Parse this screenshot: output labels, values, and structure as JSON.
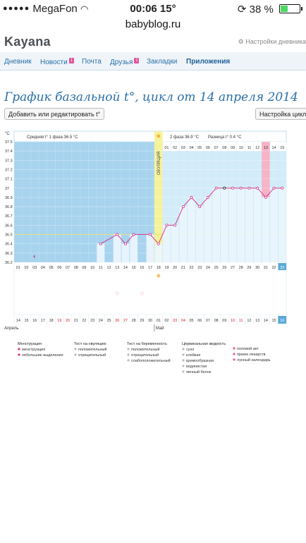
{
  "status_bar": {
    "carrier": "MegaFon",
    "time": "00:06 15°",
    "battery": "38 %",
    "battery_level": 0.38
  },
  "browser": {
    "url": "babyblog.ru"
  },
  "site": {
    "name": "Kayana",
    "settings_link": "Настройки дневника"
  },
  "nav": {
    "items": [
      {
        "label": "Дневник"
      },
      {
        "label": "Новости",
        "badge": "1"
      },
      {
        "label": "Почта"
      },
      {
        "label": "Друзья",
        "badge": "1"
      },
      {
        "label": "Закладки"
      },
      {
        "label": "Приложения",
        "active": true
      }
    ]
  },
  "page": {
    "title": "График базальной t°, цикл от 14 апреля 2014",
    "add_button": "Добавить или редактировать t°",
    "settings_button": "Настройка цикла"
  },
  "chart_data": {
    "type": "line",
    "y_unit": "°C",
    "ylim": [
      36.2,
      37.5
    ],
    "y_ticks": [
      "37.5",
      "37.4",
      "37.3",
      "37.2",
      "37.1",
      "37",
      "36.9",
      "36.8",
      "36.7",
      "36.6",
      "36.5",
      "36.4",
      "36.3",
      "36.2"
    ],
    "phase1_label": "Средняя t° 1 фаза 36.5 °C",
    "phase2_label": "2 фаза 36.9 °C",
    "diff_label": "Разница t° 0.4 °C",
    "ovulation_label": "ОВУЛЯЦИЯ",
    "cycle_days": [
      "01",
      "02",
      "03",
      "04",
      "05",
      "06",
      "07",
      "08",
      "09",
      "10",
      "11",
      "12",
      "13",
      "14",
      "15",
      "16",
      "17",
      "18",
      "19",
      "20",
      "21",
      "22",
      "23",
      "24",
      "25",
      "26",
      "27",
      "28",
      "29",
      "30",
      "31",
      "32",
      "33"
    ],
    "days_after_ovulation": [
      "01",
      "02",
      "03",
      "04",
      "05",
      "06",
      "07",
      "08",
      "09",
      "10",
      "11",
      "12",
      "13",
      "14",
      "15"
    ],
    "temperatures": [
      null,
      null,
      null,
      null,
      null,
      null,
      null,
      null,
      null,
      null,
      36.4,
      null,
      36.5,
      36.4,
      36.5,
      null,
      36.5,
      36.4,
      36.6,
      36.6,
      36.8,
      36.9,
      36.8,
      36.9,
      37.0,
      37.0,
      37.0,
      37.0,
      37.0,
      37.0,
      36.9,
      37.0,
      37.0
    ],
    "phase1_average": 36.5,
    "calendar_dates": [
      "14",
      "15",
      "16",
      "17",
      "18",
      "19",
      "20",
      "21",
      "22",
      "23",
      "24",
      "25",
      "26",
      "27",
      "28",
      "29",
      "30",
      "01",
      "02",
      "03",
      "04",
      "05",
      "06",
      "07",
      "08",
      "09",
      "10",
      "11",
      "12",
      "13",
      "14",
      "15",
      "16"
    ],
    "weekend_dates": [
      19,
      20,
      26,
      27,
      3,
      4,
      10,
      11
    ],
    "month_labels": [
      "Апрель",
      "Май"
    ],
    "today_day": "33",
    "today_date": "16"
  },
  "legend": {
    "groups": [
      {
        "title": "Менструация",
        "items": [
          "менструация",
          "небольшие выделения"
        ]
      },
      {
        "title": "Тест на овуляцию",
        "items": [
          "положительный",
          "отрицательный"
        ]
      },
      {
        "title": "Тест на беременность",
        "items": [
          "положительный",
          "отрицательный",
          "слабоположительный"
        ]
      },
      {
        "title": "Цервикальная жидкость",
        "items": [
          "сухо",
          "клейкая",
          "кремообразная",
          "водянистая",
          "яичный белок"
        ]
      },
      {
        "title": "",
        "items": [
          "половой акт",
          "прием лекарств",
          "лунный календарь"
        ]
      }
    ]
  },
  "colors": {
    "accent": "#2a6fa8",
    "phase1_bg": "#a7d3ee",
    "phase2_bg": "#d3ecf9",
    "ovulation": "#f6f299",
    "line": "#d63c8e",
    "highlight": "#f7b3c7",
    "today": "#5aa9d6"
  }
}
